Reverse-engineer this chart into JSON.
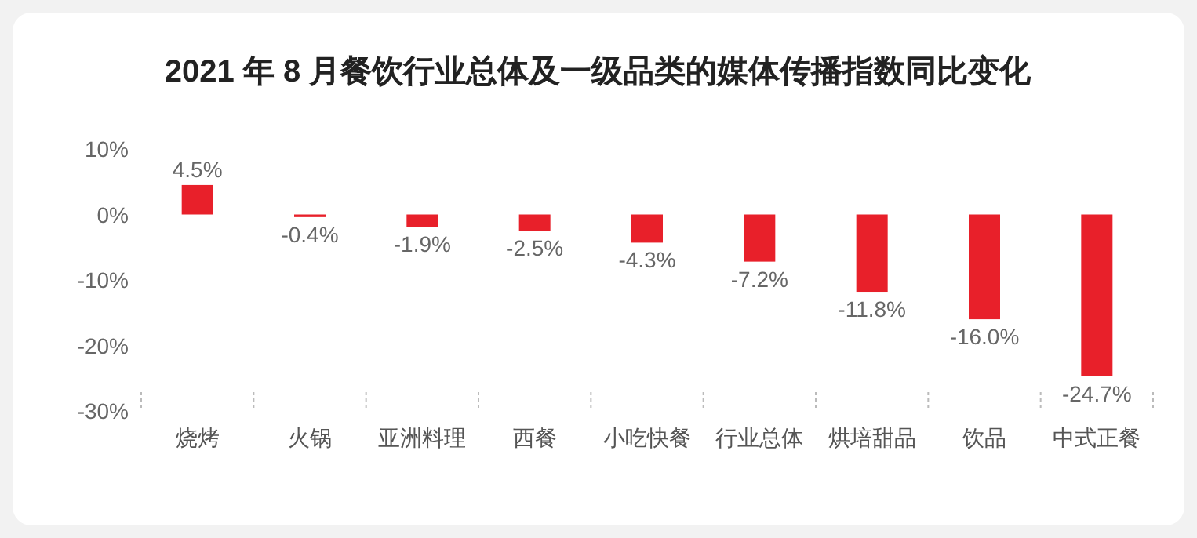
{
  "chart_data": {
    "type": "bar",
    "title": "2021 年 8 月餐饮行业总体及一级品类的媒体传播指数同比变化",
    "categories": [
      "烧烤",
      "火锅",
      "亚洲料理",
      "西餐",
      "小吃快餐",
      "行业总体",
      "烘培甜品",
      "饮品",
      "中式正餐"
    ],
    "values": [
      4.5,
      -0.4,
      -1.9,
      -2.5,
      -4.3,
      -7.2,
      -11.8,
      -16.0,
      -24.7
    ],
    "value_labels": [
      "4.5%",
      "-0.4%",
      "-1.9%",
      "-2.5%",
      "-4.3%",
      "-7.2%",
      "-11.8%",
      "-16.0%",
      "-24.7%"
    ],
    "color": "#e8202a",
    "ylim": [
      -30,
      10
    ],
    "yticks": [
      {
        "value": 10,
        "label": "10%"
      },
      {
        "value": 0,
        "label": "0%"
      },
      {
        "value": -10,
        "label": "-10%"
      },
      {
        "value": -20,
        "label": "-20%"
      },
      {
        "value": -30,
        "label": "-30%"
      }
    ]
  }
}
